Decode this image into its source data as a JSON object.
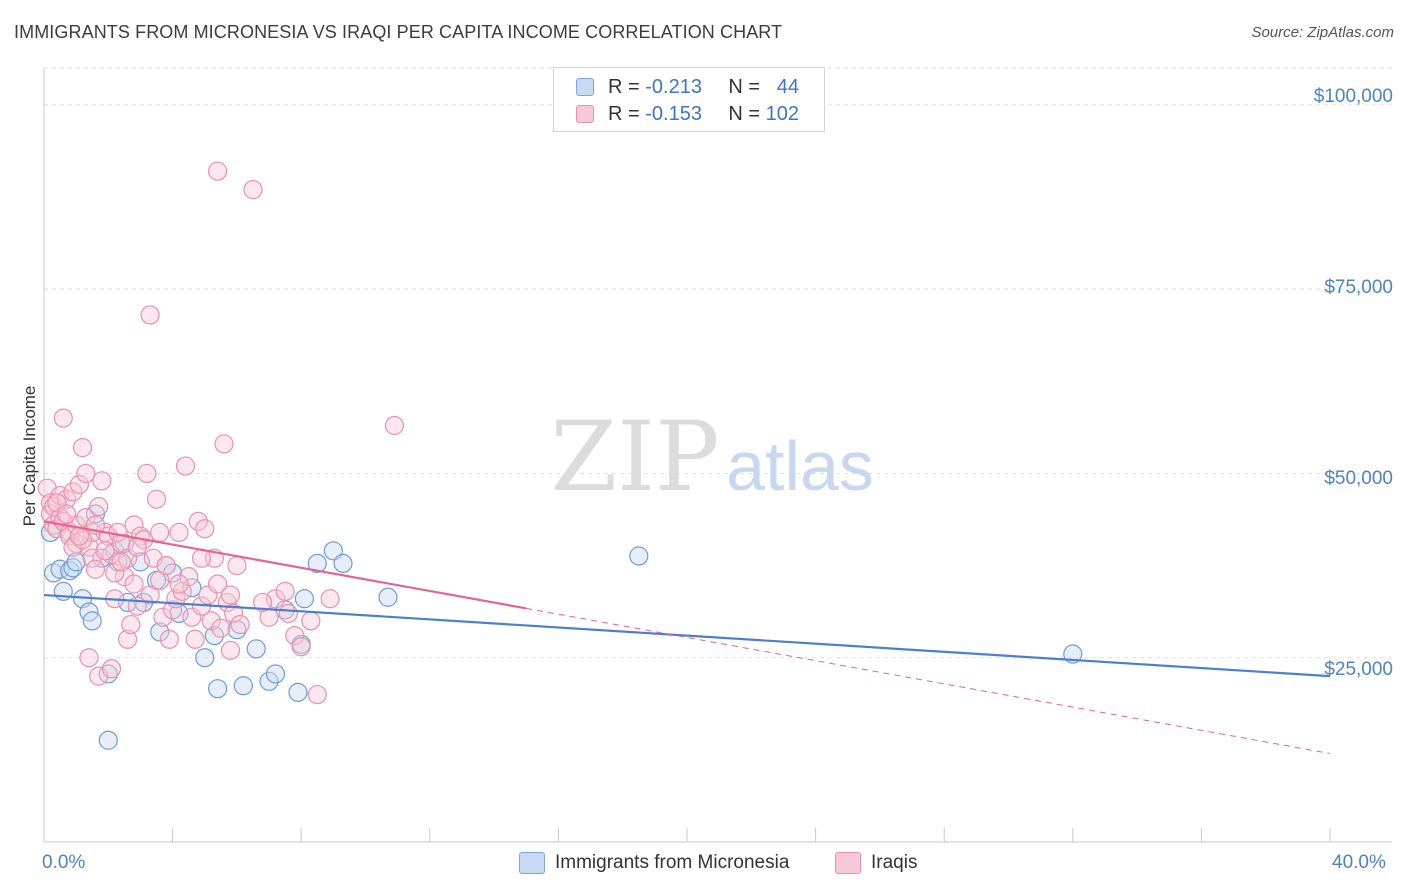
{
  "title": "IMMIGRANTS FROM MICRONESIA VS IRAQI PER CAPITA INCOME CORRELATION CHART",
  "source": "Source: ZipAtlas.com",
  "watermark": {
    "zip": "ZIP",
    "atlas": "atlas"
  },
  "legend": {
    "blue": {
      "r_label": "R =",
      "r_value": "-0.213",
      "n_label": "N =",
      "n_value": "44"
    },
    "pink": {
      "r_label": "R =",
      "r_value": "-0.153",
      "n_label": "N =",
      "n_value": "102"
    }
  },
  "colors": {
    "blue": "#4a7fd0",
    "blue_fill": "#c8daf3",
    "pink": "#e8628f",
    "pink_fill": "#f7c9d8",
    "tick_text": "#4d82c7"
  },
  "chart_data": {
    "type": "scatter",
    "title": "IMMIGRANTS FROM MICRONESIA VS IRAQI PER CAPITA INCOME CORRELATION CHART",
    "xlabel": "",
    "ylabel": "Per Capita Income",
    "xlim": [
      0,
      40
    ],
    "ylim": [
      0,
      105000
    ],
    "x_tick_labels": [
      "0.0%",
      "40.0%"
    ],
    "y_ticks": [
      25000,
      50000,
      75000,
      100000
    ],
    "y_tick_labels": [
      "$25,000",
      "$50,000",
      "$75,000",
      "$100,000"
    ],
    "series": [
      {
        "name": "Immigrants from Micronesia",
        "color": "#4a7fd0",
        "trend": {
          "x": [
            0,
            40
          ],
          "y": [
            33500,
            22500
          ],
          "dashed_from": null
        },
        "points": [
          [
            0.2,
            42000
          ],
          [
            0.3,
            36500
          ],
          [
            0.5,
            37000
          ],
          [
            0.6,
            34000
          ],
          [
            0.8,
            36800
          ],
          [
            0.9,
            37200
          ],
          [
            1.0,
            38000
          ],
          [
            1.2,
            33000
          ],
          [
            1.4,
            31200
          ],
          [
            1.5,
            30000
          ],
          [
            1.6,
            44500
          ],
          [
            1.8,
            38500
          ],
          [
            2.0,
            22800
          ],
          [
            2.0,
            13800
          ],
          [
            2.2,
            39500
          ],
          [
            2.3,
            38000
          ],
          [
            2.5,
            40500
          ],
          [
            2.6,
            32500
          ],
          [
            3.0,
            38000
          ],
          [
            3.1,
            32500
          ],
          [
            3.5,
            35500
          ],
          [
            3.6,
            28500
          ],
          [
            3.8,
            37500
          ],
          [
            4.0,
            36500
          ],
          [
            4.2,
            31000
          ],
          [
            4.6,
            34500
          ],
          [
            5.0,
            25000
          ],
          [
            5.3,
            28000
          ],
          [
            5.4,
            20800
          ],
          [
            6.0,
            28800
          ],
          [
            6.2,
            21200
          ],
          [
            6.6,
            26200
          ],
          [
            7.0,
            21800
          ],
          [
            7.2,
            22800
          ],
          [
            7.5,
            31500
          ],
          [
            7.9,
            20300
          ],
          [
            8.0,
            26800
          ],
          [
            8.1,
            33000
          ],
          [
            8.5,
            37800
          ],
          [
            9.0,
            39500
          ],
          [
            9.3,
            37800
          ],
          [
            10.7,
            33200
          ],
          [
            18.5,
            38800
          ],
          [
            32.0,
            25500
          ]
        ]
      },
      {
        "name": "Iraqis",
        "color": "#e8628f",
        "trend": {
          "x": [
            0,
            40
          ],
          "y": [
            43500,
            12000
          ],
          "dashed_from": 15.0
        },
        "points": [
          [
            0.1,
            48000
          ],
          [
            0.2,
            46000
          ],
          [
            0.2,
            44500
          ],
          [
            0.3,
            43000
          ],
          [
            0.3,
            45500
          ],
          [
            0.4,
            42500
          ],
          [
            0.5,
            47000
          ],
          [
            0.5,
            44000
          ],
          [
            0.6,
            43500
          ],
          [
            0.6,
            57500
          ],
          [
            0.7,
            46500
          ],
          [
            0.8,
            42000
          ],
          [
            0.8,
            41500
          ],
          [
            0.9,
            47500
          ],
          [
            1.0,
            40500
          ],
          [
            1.0,
            43000
          ],
          [
            1.1,
            48500
          ],
          [
            1.2,
            53500
          ],
          [
            1.3,
            50000
          ],
          [
            1.3,
            44000
          ],
          [
            1.4,
            40000
          ],
          [
            1.5,
            42000
          ],
          [
            1.5,
            38500
          ],
          [
            1.6,
            37000
          ],
          [
            1.7,
            45500
          ],
          [
            1.8,
            49000
          ],
          [
            1.9,
            42000
          ],
          [
            2.0,
            41500
          ],
          [
            2.1,
            39000
          ],
          [
            2.2,
            33000
          ],
          [
            2.3,
            42000
          ],
          [
            2.4,
            40500
          ],
          [
            2.5,
            36000
          ],
          [
            2.6,
            38500
          ],
          [
            2.6,
            27500
          ],
          [
            2.7,
            29500
          ],
          [
            2.8,
            43000
          ],
          [
            2.9,
            32000
          ],
          [
            3.0,
            41500
          ],
          [
            3.1,
            41000
          ],
          [
            3.2,
            50000
          ],
          [
            3.3,
            71500
          ],
          [
            3.4,
            38500
          ],
          [
            3.5,
            46500
          ],
          [
            3.6,
            35500
          ],
          [
            3.7,
            30500
          ],
          [
            3.8,
            37500
          ],
          [
            3.9,
            27500
          ],
          [
            4.0,
            31500
          ],
          [
            4.1,
            33000
          ],
          [
            4.2,
            42000
          ],
          [
            4.3,
            34000
          ],
          [
            4.4,
            51000
          ],
          [
            4.5,
            36000
          ],
          [
            4.6,
            30500
          ],
          [
            4.7,
            27500
          ],
          [
            4.8,
            43500
          ],
          [
            4.9,
            32000
          ],
          [
            5.0,
            42500
          ],
          [
            5.1,
            33500
          ],
          [
            5.2,
            30000
          ],
          [
            5.3,
            38500
          ],
          [
            5.4,
            35000
          ],
          [
            5.5,
            29000
          ],
          [
            5.6,
            54000
          ],
          [
            5.7,
            32500
          ],
          [
            5.8,
            26000
          ],
          [
            5.9,
            31000
          ],
          [
            6.0,
            37500
          ],
          [
            6.1,
            29500
          ],
          [
            5.4,
            91000
          ],
          [
            6.5,
            88500
          ],
          [
            7.0,
            30500
          ],
          [
            7.2,
            33000
          ],
          [
            7.5,
            34000
          ],
          [
            7.8,
            28000
          ],
          [
            8.0,
            26500
          ],
          [
            8.3,
            30000
          ],
          [
            8.5,
            20000
          ],
          [
            10.9,
            56500
          ],
          [
            1.4,
            25000
          ],
          [
            1.7,
            22500
          ],
          [
            2.1,
            23500
          ],
          [
            0.9,
            40000
          ],
          [
            1.2,
            41000
          ],
          [
            1.6,
            43000
          ],
          [
            2.2,
            36500
          ],
          [
            2.8,
            35000
          ],
          [
            3.3,
            33500
          ],
          [
            0.4,
            46000
          ],
          [
            0.7,
            44500
          ],
          [
            1.1,
            41500
          ],
          [
            1.9,
            39500
          ],
          [
            2.4,
            38000
          ],
          [
            2.9,
            40000
          ],
          [
            3.6,
            42000
          ],
          [
            4.2,
            35000
          ],
          [
            4.9,
            38500
          ],
          [
            5.8,
            33500
          ],
          [
            6.8,
            32500
          ],
          [
            7.6,
            31000
          ],
          [
            8.9,
            33000
          ]
        ]
      }
    ]
  },
  "bottom_legend": {
    "blue_label": "Immigrants from Micronesia",
    "pink_label": "Iraqis"
  }
}
